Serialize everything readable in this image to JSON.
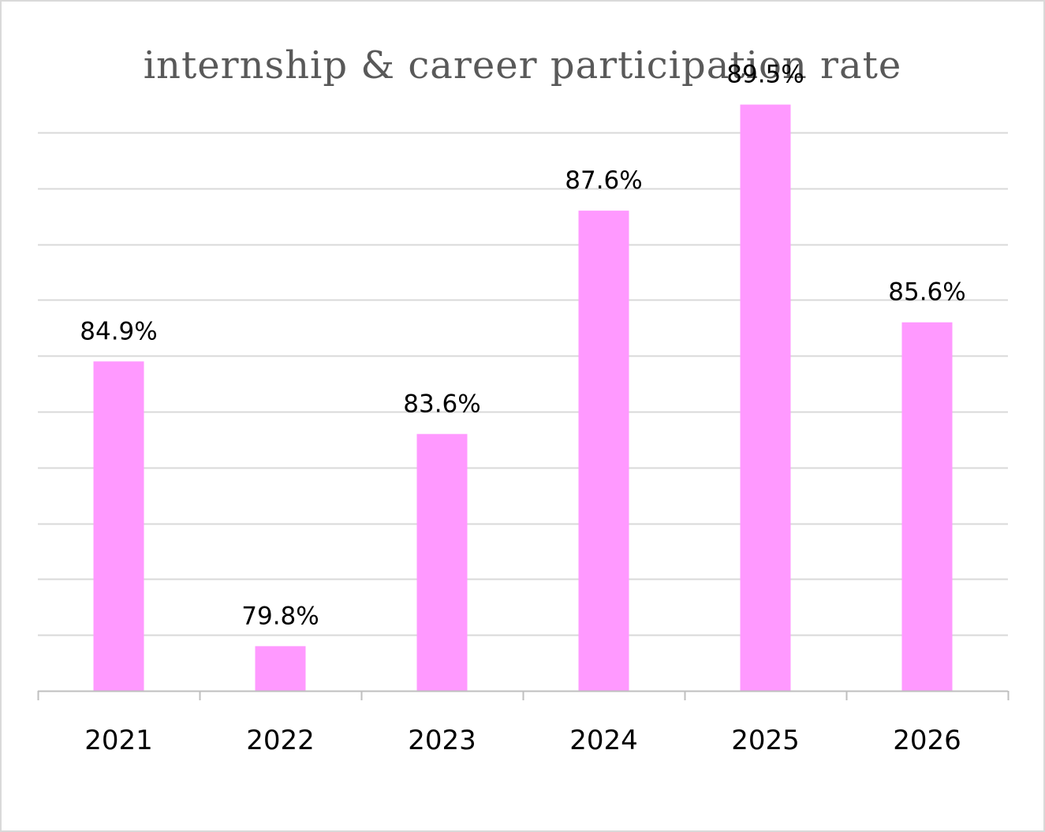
{
  "chart_data": {
    "type": "bar",
    "title": "internship & career participation rate",
    "categories": [
      "2021",
      "2022",
      "2023",
      "2024",
      "2025",
      "2026"
    ],
    "values": [
      84.9,
      79.8,
      83.6,
      87.6,
      89.5,
      85.6
    ],
    "data_labels": [
      "84.9%",
      "79.8%",
      "83.6%",
      "87.6%",
      "89.5%",
      "85.6%"
    ],
    "xlabel": "",
    "ylabel": "",
    "ylim": [
      79,
      89
    ],
    "y_tick_step": 1,
    "grid": true,
    "legend": "none",
    "colors": {
      "bar": "#ff99ff",
      "grid": "#d9d9d9",
      "axis": "#bfbfbf",
      "title": "#595959",
      "text": "#000000"
    }
  }
}
